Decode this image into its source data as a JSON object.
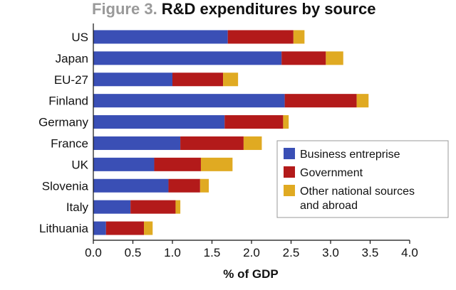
{
  "chart_data": {
    "type": "bar",
    "orientation": "horizontal",
    "stacked": true,
    "title_prefix": "Figure 3.",
    "title": "R&D expenditures by source",
    "xlabel": "% of GDP",
    "ylabel": "",
    "xlim": [
      0,
      4.0
    ],
    "xticks": [
      "0.0",
      "0.5",
      "1.0",
      "1.5",
      "2.0",
      "2.5",
      "3.0",
      "3.5",
      "4.0"
    ],
    "grid": false,
    "legend_position": "right",
    "categories": [
      "US",
      "Japan",
      "EU-27",
      "Finland",
      "Germany",
      "France",
      "UK",
      "Slovenia",
      "Italy",
      "Lithuania"
    ],
    "series": [
      {
        "name": "Business entreprise",
        "color": "#3a4fb5",
        "values": [
          1.7,
          2.38,
          1.0,
          2.42,
          1.66,
          1.1,
          0.77,
          0.95,
          0.47,
          0.16
        ]
      },
      {
        "name": "Government",
        "color": "#b31a1a",
        "values": [
          0.83,
          0.56,
          0.64,
          0.91,
          0.74,
          0.8,
          0.59,
          0.4,
          0.57,
          0.48
        ]
      },
      {
        "name": "Other national sources and abroad",
        "legend_lines": [
          "Other national sources",
          "and abroad"
        ],
        "color": "#e0aa22",
        "values": [
          0.14,
          0.22,
          0.19,
          0.15,
          0.07,
          0.23,
          0.4,
          0.11,
          0.06,
          0.11
        ]
      }
    ]
  }
}
